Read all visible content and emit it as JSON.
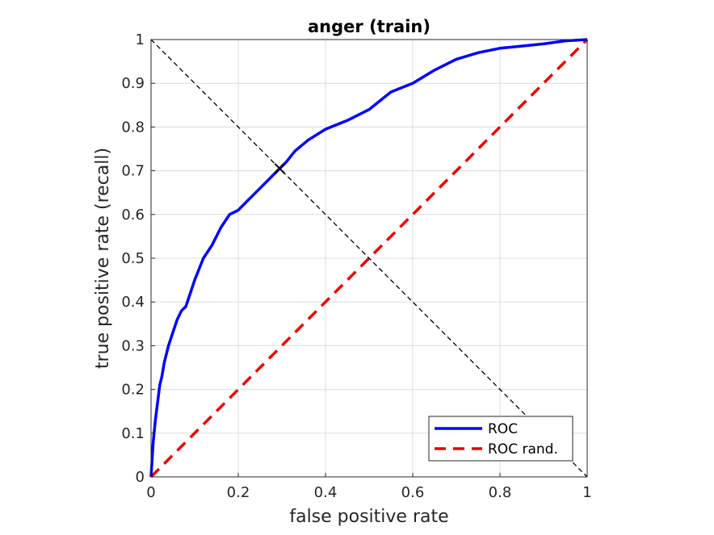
{
  "chart_data": {
    "type": "line",
    "title": "anger (train)",
    "xlabel": "false positive rate",
    "ylabel": "true positive rate (recall)",
    "xlim": [
      0,
      1
    ],
    "ylim": [
      0,
      1
    ],
    "xticks": [
      0,
      0.2,
      0.4,
      0.6,
      0.8,
      1
    ],
    "xtick_labels": [
      "0",
      "0.2",
      "0.4",
      "0.6",
      "0.8",
      "1"
    ],
    "yticks": [
      0,
      0.1,
      0.2,
      0.3,
      0.4,
      0.5,
      0.6,
      0.7,
      0.8,
      0.9,
      1
    ],
    "ytick_labels": [
      "0",
      "0.1",
      "0.2",
      "0.3",
      "0.4",
      "0.5",
      "0.6",
      "0.7",
      "0.8",
      "0.9",
      "1"
    ],
    "grid": true,
    "legend_position": "bottom-right",
    "series": [
      {
        "name": "ROC",
        "color": "#0000ff",
        "style": "solid",
        "x": [
          0,
          0.005,
          0.01,
          0.015,
          0.02,
          0.025,
          0.03,
          0.04,
          0.05,
          0.06,
          0.07,
          0.08,
          0.09,
          0.1,
          0.12,
          0.14,
          0.16,
          0.18,
          0.2,
          0.22,
          0.24,
          0.26,
          0.28,
          0.295,
          0.31,
          0.33,
          0.36,
          0.4,
          0.45,
          0.5,
          0.55,
          0.6,
          0.65,
          0.7,
          0.75,
          0.8,
          0.85,
          0.9,
          0.95,
          1
        ],
        "y": [
          0,
          0.08,
          0.13,
          0.17,
          0.21,
          0.23,
          0.26,
          0.3,
          0.33,
          0.36,
          0.38,
          0.39,
          0.42,
          0.45,
          0.5,
          0.53,
          0.57,
          0.6,
          0.61,
          0.63,
          0.65,
          0.67,
          0.69,
          0.705,
          0.72,
          0.745,
          0.77,
          0.795,
          0.815,
          0.84,
          0.88,
          0.9,
          0.93,
          0.955,
          0.97,
          0.98,
          0.985,
          0.99,
          0.997,
          1
        ]
      },
      {
        "name": "ROC rand.",
        "color": "#e60000",
        "style": "dashed",
        "x": [
          0,
          1
        ],
        "y": [
          0,
          1
        ]
      }
    ],
    "reference_line": {
      "color": "#000000",
      "style": "dashed",
      "x": [
        0,
        1
      ],
      "y": [
        1,
        0
      ]
    },
    "marker": {
      "x": 0.295,
      "y": 0.705,
      "symbol": "x",
      "color": "#000000"
    }
  }
}
